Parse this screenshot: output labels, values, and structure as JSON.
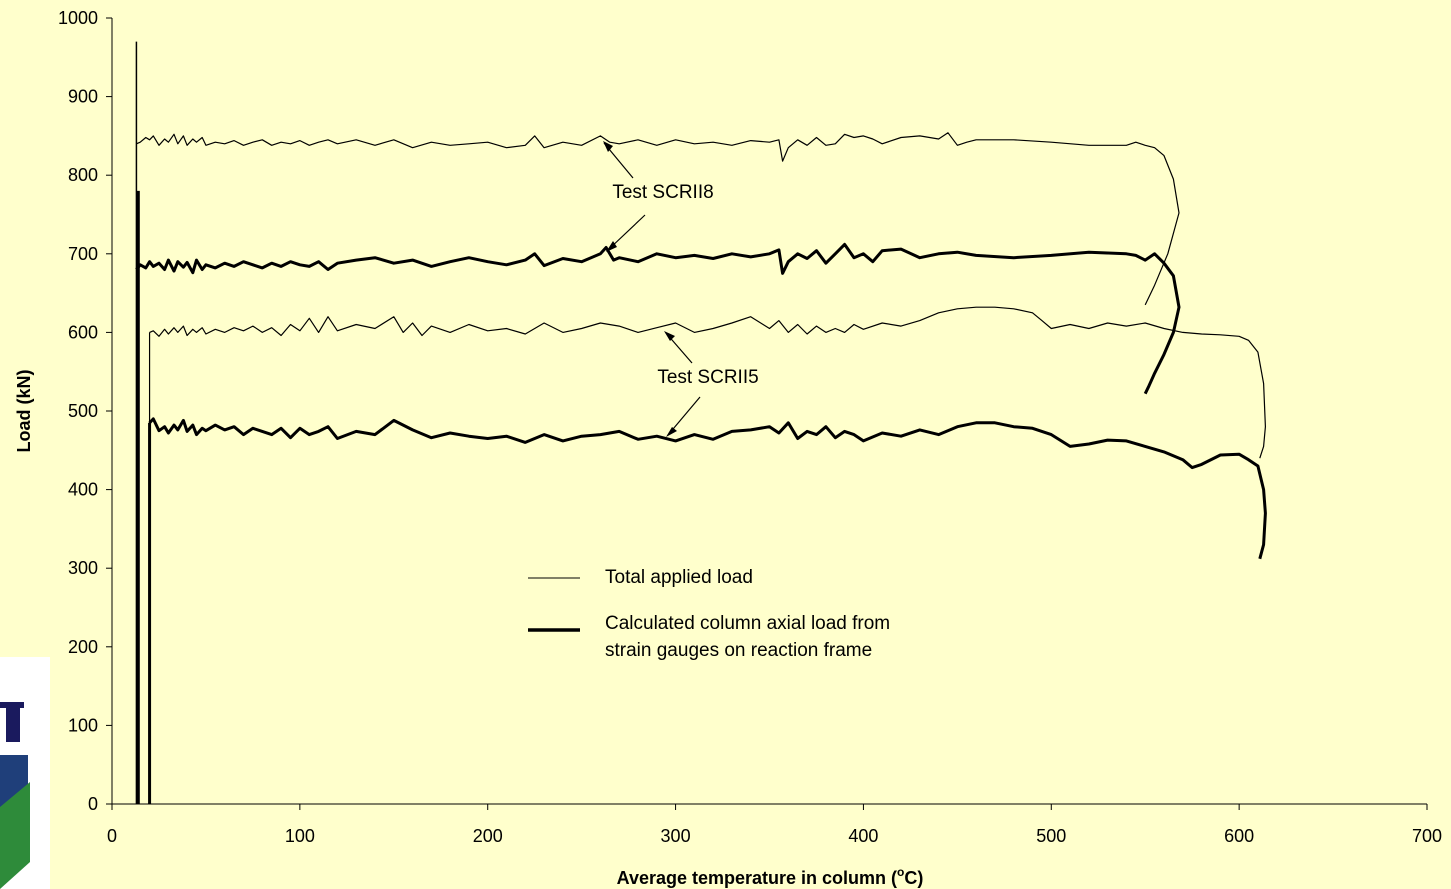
{
  "chart_data": {
    "type": "line",
    "title": "",
    "xlabel": "Average temperature in column (",
    "xlabel_sup": "o",
    "xlabel_tail": "C)",
    "ylabel": "Load (kN)",
    "xlim": [
      0,
      700
    ],
    "ylim": [
      0,
      1000
    ],
    "x_ticks": [
      "0",
      "100",
      "200",
      "300",
      "400",
      "500",
      "600",
      "700"
    ],
    "y_ticks": [
      "0",
      "100",
      "200",
      "300",
      "400",
      "500",
      "600",
      "700",
      "800",
      "900",
      "1000"
    ],
    "grid": false,
    "legend": {
      "position": "center",
      "items": [
        {
          "style": "thin",
          "lines": [
            "Total applied load"
          ]
        },
        {
          "style": "thick",
          "lines": [
            "Calculated column axial load from",
            "strain gauges on reaction frame"
          ]
        }
      ]
    },
    "annotations": [
      "Test SCRII8",
      "Test SCRII5"
    ],
    "series": [
      {
        "style": "thin",
        "x": [
          13,
          15,
          18,
          20,
          22,
          25,
          28,
          30,
          33,
          35,
          38,
          40,
          43,
          45,
          48,
          50,
          55,
          60,
          65,
          70,
          75,
          80,
          85,
          90,
          95,
          100,
          105,
          110,
          115,
          120,
          130,
          140,
          150,
          160,
          170,
          180,
          190,
          200,
          210,
          220,
          225,
          230,
          240,
          250,
          260,
          265,
          270,
          280,
          290,
          300,
          310,
          320,
          330,
          340,
          350,
          355,
          357,
          360,
          365,
          370,
          375,
          380,
          385,
          390,
          395,
          400,
          405,
          410,
          420,
          430,
          440,
          445,
          450,
          455,
          460,
          480,
          500,
          520,
          540,
          545,
          550,
          555,
          560,
          565,
          568,
          562,
          555,
          550
        ],
        "y": [
          840,
          842,
          848,
          845,
          850,
          838,
          846,
          842,
          852,
          840,
          850,
          838,
          846,
          842,
          848,
          838,
          842,
          840,
          844,
          838,
          842,
          845,
          838,
          842,
          840,
          844,
          838,
          842,
          845,
          840,
          845,
          838,
          845,
          835,
          842,
          838,
          840,
          842,
          835,
          838,
          850,
          835,
          842,
          838,
          850,
          842,
          840,
          845,
          838,
          845,
          840,
          842,
          838,
          844,
          842,
          845,
          818,
          835,
          845,
          838,
          848,
          838,
          840,
          852,
          848,
          850,
          846,
          840,
          848,
          850,
          846,
          854,
          838,
          842,
          845,
          845,
          842,
          838,
          838,
          842,
          838,
          835,
          825,
          795,
          752,
          700,
          660,
          635
        ]
      },
      {
        "style": "thick",
        "x": [
          13,
          15,
          18,
          20,
          22,
          25,
          28,
          30,
          33,
          35,
          38,
          40,
          43,
          45,
          48,
          50,
          55,
          60,
          65,
          70,
          75,
          80,
          85,
          90,
          95,
          100,
          105,
          110,
          115,
          120,
          130,
          140,
          150,
          160,
          170,
          180,
          190,
          200,
          210,
          220,
          225,
          230,
          240,
          250,
          260,
          263,
          267,
          270,
          280,
          290,
          300,
          310,
          320,
          330,
          340,
          350,
          355,
          357,
          360,
          365,
          370,
          375,
          380,
          385,
          390,
          395,
          400,
          405,
          410,
          420,
          430,
          440,
          450,
          460,
          480,
          500,
          520,
          540,
          545,
          550,
          555,
          560,
          565,
          568,
          565,
          560,
          555,
          552,
          550
        ],
        "y": [
          680,
          686,
          682,
          690,
          684,
          688,
          680,
          692,
          678,
          690,
          683,
          689,
          676,
          692,
          680,
          686,
          682,
          688,
          684,
          690,
          686,
          682,
          688,
          684,
          690,
          686,
          684,
          690,
          680,
          688,
          692,
          695,
          688,
          692,
          684,
          690,
          695,
          690,
          686,
          692,
          700,
          685,
          694,
          690,
          700,
          708,
          692,
          695,
          690,
          700,
          695,
          698,
          694,
          700,
          696,
          700,
          705,
          675,
          690,
          700,
          694,
          704,
          688,
          700,
          712,
          695,
          700,
          690,
          704,
          706,
          695,
          700,
          702,
          698,
          695,
          698,
          702,
          700,
          698,
          692,
          700,
          688,
          672,
          632,
          600,
          572,
          548,
          532,
          522
        ]
      },
      {
        "style": "thin",
        "x": [
          20,
          22,
          25,
          28,
          30,
          33,
          35,
          38,
          40,
          43,
          45,
          48,
          50,
          55,
          60,
          65,
          70,
          75,
          80,
          85,
          90,
          95,
          100,
          105,
          110,
          115,
          120,
          130,
          140,
          150,
          155,
          160,
          165,
          170,
          180,
          190,
          200,
          210,
          220,
          230,
          240,
          250,
          260,
          270,
          280,
          290,
          300,
          310,
          320,
          330,
          340,
          350,
          355,
          360,
          365,
          370,
          375,
          380,
          385,
          390,
          395,
          400,
          410,
          420,
          430,
          440,
          450,
          460,
          470,
          480,
          490,
          495,
          500,
          510,
          520,
          530,
          540,
          550,
          560,
          570,
          580,
          590,
          600,
          605,
          610,
          613,
          614,
          613,
          611
        ],
        "y": [
          600,
          602,
          595,
          604,
          598,
          606,
          600,
          608,
          596,
          604,
          600,
          606,
          598,
          604,
          600,
          606,
          602,
          608,
          600,
          606,
          596,
          610,
          602,
          618,
          600,
          620,
          602,
          610,
          605,
          620,
          600,
          612,
          596,
          608,
          600,
          610,
          602,
          605,
          598,
          612,
          600,
          605,
          612,
          608,
          600,
          606,
          612,
          600,
          605,
          612,
          620,
          605,
          615,
          600,
          610,
          598,
          608,
          600,
          605,
          600,
          610,
          604,
          612,
          608,
          615,
          625,
          630,
          632,
          632,
          630,
          625,
          615,
          605,
          610,
          605,
          612,
          608,
          612,
          605,
          600,
          598,
          597,
          595,
          590,
          575,
          535,
          480,
          455,
          440
        ]
      },
      {
        "style": "thick",
        "x": [
          20,
          22,
          25,
          28,
          30,
          33,
          35,
          38,
          40,
          43,
          45,
          48,
          50,
          55,
          60,
          65,
          70,
          75,
          80,
          85,
          90,
          95,
          100,
          105,
          110,
          115,
          120,
          130,
          140,
          150,
          160,
          170,
          180,
          190,
          200,
          210,
          220,
          230,
          240,
          250,
          260,
          270,
          280,
          290,
          300,
          310,
          320,
          330,
          340,
          350,
          355,
          360,
          365,
          370,
          375,
          380,
          385,
          390,
          395,
          400,
          410,
          420,
          430,
          440,
          450,
          460,
          470,
          480,
          490,
          500,
          510,
          520,
          530,
          540,
          550,
          560,
          570,
          575,
          580,
          590,
          600,
          605,
          610,
          613,
          614,
          613,
          611
        ],
        "y": [
          485,
          490,
          475,
          480,
          472,
          482,
          476,
          488,
          474,
          482,
          470,
          478,
          475,
          482,
          476,
          480,
          470,
          478,
          474,
          470,
          478,
          466,
          478,
          470,
          474,
          480,
          465,
          474,
          470,
          488,
          476,
          466,
          472,
          468,
          465,
          468,
          460,
          470,
          462,
          468,
          470,
          474,
          464,
          468,
          462,
          470,
          464,
          474,
          476,
          480,
          472,
          485,
          465,
          474,
          470,
          480,
          466,
          474,
          470,
          462,
          472,
          468,
          476,
          470,
          480,
          485,
          485,
          480,
          478,
          470,
          455,
          458,
          463,
          462,
          455,
          448,
          438,
          428,
          432,
          444,
          445,
          438,
          430,
          400,
          370,
          330,
          312
        ]
      }
    ]
  }
}
